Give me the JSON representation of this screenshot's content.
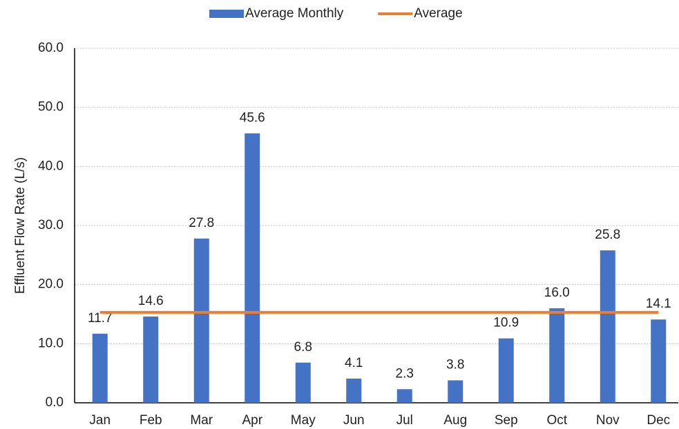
{
  "chart_data": {
    "type": "bar",
    "y_label": "Effluent Flow Rate (L/s)",
    "categories": [
      "Jan",
      "Feb",
      "Mar",
      "Apr",
      "May",
      "Jun",
      "Jul",
      "Aug",
      "Sep",
      "Oct",
      "Nov",
      "Dec"
    ],
    "series": [
      {
        "name": "Average Monthly",
        "type": "bar",
        "color": "#4472c4",
        "values": [
          11.7,
          14.6,
          27.8,
          45.6,
          6.8,
          4.1,
          2.3,
          3.8,
          10.9,
          16,
          25.8,
          14.1
        ],
        "value_labels": [
          "11.7",
          "14.6",
          "27.8",
          "45.6",
          "6.8",
          "4.1",
          "2.3",
          "3.8",
          "10.9",
          "16.0",
          "25.8",
          "14.1"
        ]
      },
      {
        "name": "Average",
        "type": "line",
        "color": "#ed7d31",
        "values": [
          15.3,
          15.3,
          15.3,
          15.3,
          15.3,
          15.3,
          15.3,
          15.3,
          15.3,
          15.3,
          15.3,
          15.3
        ]
      }
    ],
    "ylim": [
      0,
      60
    ],
    "yticks": [
      {
        "value": 0,
        "label": "0.0"
      },
      {
        "value": 10,
        "label": "10.0"
      },
      {
        "value": 20,
        "label": "20.0"
      },
      {
        "value": 30,
        "label": "30.0"
      },
      {
        "value": 40,
        "label": "40.0"
      },
      {
        "value": 50,
        "label": "50.0"
      },
      {
        "value": 60,
        "label": "60.0"
      }
    ],
    "grid": true,
    "legend": "top"
  }
}
